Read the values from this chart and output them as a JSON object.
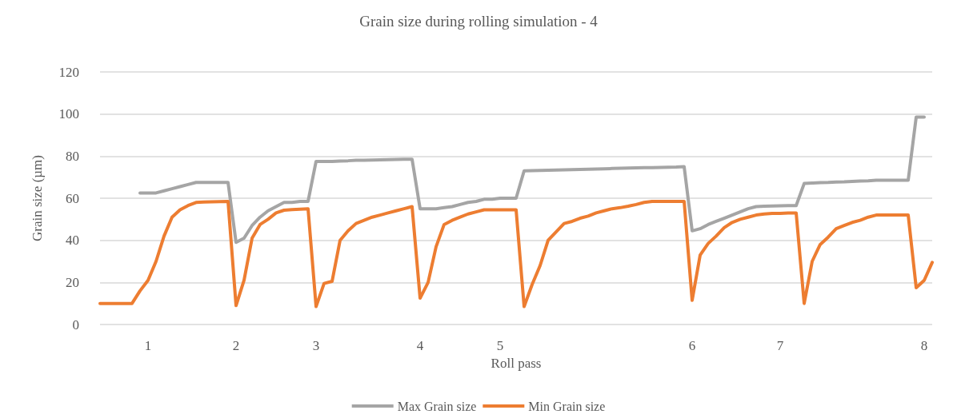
{
  "chart_data": {
    "type": "line",
    "title": "Grain size during rolling simulation - 4",
    "xlabel": "Roll pass",
    "ylabel": "Grain size (µm)",
    "categories": [
      null,
      null,
      null,
      null,
      null,
      null,
      "1",
      null,
      null,
      null,
      null,
      null,
      null,
      null,
      null,
      null,
      null,
      "2",
      null,
      null,
      null,
      null,
      null,
      null,
      null,
      null,
      null,
      "3",
      null,
      null,
      null,
      null,
      null,
      null,
      null,
      null,
      null,
      null,
      null,
      null,
      "4",
      null,
      null,
      null,
      null,
      null,
      null,
      null,
      null,
      null,
      "5",
      null,
      null,
      null,
      null,
      null,
      null,
      null,
      null,
      null,
      null,
      null,
      null,
      null,
      null,
      null,
      null,
      null,
      null,
      null,
      null,
      null,
      null,
      null,
      "6",
      null,
      null,
      null,
      null,
      null,
      null,
      null,
      null,
      null,
      null,
      "7",
      null,
      null,
      null,
      null,
      null,
      null,
      null,
      null,
      null,
      null,
      null,
      null,
      null,
      null,
      null,
      null,
      null,
      "8",
      null
    ],
    "ylim": [
      0,
      120
    ],
    "yticks": [
      0,
      20,
      40,
      60,
      80,
      100,
      120
    ],
    "grid": "y",
    "legend": "bottom",
    "marker": "none",
    "line_style": "solid",
    "series": [
      {
        "name": "Max Grain size",
        "color": "#a5a5a5",
        "values": [
          null,
          null,
          null,
          null,
          null,
          62.5,
          62.5,
          62.5,
          63.5,
          64.5,
          65.5,
          66.5,
          67.5,
          67.5,
          67.5,
          67.5,
          67.5,
          39,
          41,
          47,
          51,
          54,
          56,
          58,
          58,
          58.5,
          58.5,
          77.5,
          77.5,
          77.5,
          77.7,
          77.8,
          78,
          78,
          78.1,
          78.2,
          78.3,
          78.4,
          78.5,
          78.5,
          55,
          55,
          55,
          55.5,
          56,
          57,
          58,
          58.5,
          59.5,
          59.5,
          60,
          60,
          60,
          73,
          73.1,
          73.2,
          73.3,
          73.4,
          73.5,
          73.6,
          73.7,
          73.8,
          73.9,
          74,
          74.1,
          74.2,
          74.3,
          74.4,
          74.5,
          74.5,
          74.6,
          74.7,
          74.8,
          75,
          44.5,
          45.5,
          47.5,
          49,
          50.5,
          52,
          53.5,
          55,
          56,
          56.2,
          56.3,
          56.4,
          56.5,
          56.5,
          67,
          67.2,
          67.4,
          67.5,
          67.7,
          67.8,
          68,
          68.2,
          68.3,
          68.5,
          68.5,
          68.5,
          68.5,
          68.5,
          98.5,
          98.5,
          null
        ]
      },
      {
        "name": "Min Grain size",
        "color": "#ed7d31",
        "values": [
          10,
          10,
          10,
          10,
          10,
          16,
          21,
          30,
          42,
          51,
          54.5,
          56.5,
          58,
          58.2,
          58.3,
          58.4,
          58.5,
          9,
          21,
          41,
          47.5,
          50,
          53,
          54.3,
          54.6,
          54.8,
          55,
          8.5,
          19.5,
          20.5,
          40,
          44.5,
          48,
          49.5,
          51,
          52,
          53,
          54,
          55,
          56,
          12.5,
          20,
          37,
          47.5,
          49.5,
          51,
          52.5,
          53.5,
          54.5,
          54.5,
          54.5,
          54.5,
          54.5,
          8.5,
          19,
          28,
          40,
          44,
          48,
          49,
          50.5,
          51.5,
          53,
          54,
          55,
          55.5,
          56.2,
          57,
          58,
          58.5,
          58.5,
          58.5,
          58.5,
          58.5,
          11.5,
          33,
          38.5,
          42,
          46,
          48.5,
          50,
          51,
          52,
          52.5,
          52.8,
          52.8,
          53,
          53,
          10,
          30,
          38,
          41.5,
          45.5,
          47,
          48.5,
          49.5,
          51,
          52,
          52,
          52,
          52,
          52,
          17.5,
          21,
          29.5
        ]
      }
    ]
  }
}
